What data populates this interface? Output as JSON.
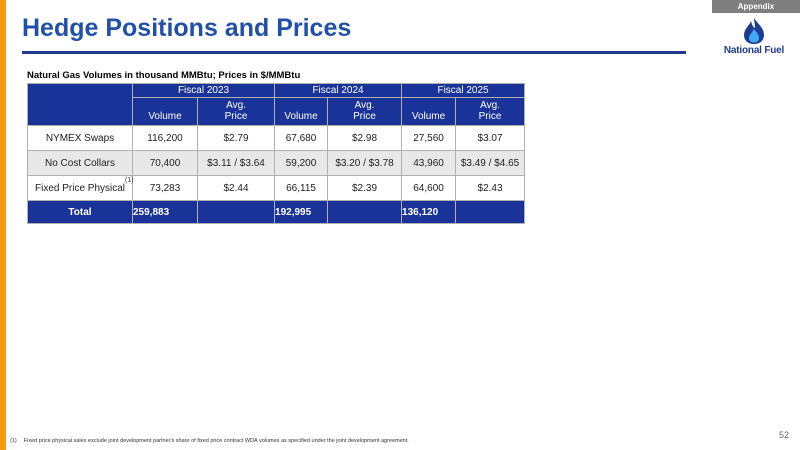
{
  "header": {
    "appendix_label": "Appendix",
    "title": "Hedge Positions and Prices",
    "logo_text": "National Fuel",
    "logo_icon": "flame-icon",
    "accent_color": "#f39c12",
    "primary_color": "#1a3399"
  },
  "table": {
    "caption": "Natural Gas Volumes in thousand MMBtu; Prices in $/MMBtu",
    "fiscal_years": [
      "Fiscal 2023",
      "Fiscal 2024",
      "Fiscal 2025"
    ],
    "sub_headers": {
      "volume": "Volume",
      "avg_price_line1": "Avg.",
      "avg_price_line2": "Price"
    },
    "rows": [
      {
        "label": "NYMEX Swaps",
        "ref": "",
        "values": [
          "116,200",
          "$2.79",
          "67,680",
          "$2.98",
          "27,560",
          "$3.07"
        ]
      },
      {
        "label": "No Cost Collars",
        "ref": "",
        "values": [
          "70,400",
          "$3.11 / $3.64",
          "59,200",
          "$3.20 / $3.78",
          "43,960",
          "$3.49 / $4.65"
        ]
      },
      {
        "label": "Fixed Price Physical",
        "ref": "(1)",
        "values": [
          "73,283",
          "$2.44",
          "66,115",
          "$2.39",
          "64,600",
          "$2.43"
        ]
      }
    ],
    "total": {
      "label": "Total",
      "values": [
        "259,883",
        "",
        "192,995",
        "",
        "136,120",
        ""
      ]
    }
  },
  "footnote": {
    "number": "(1)",
    "text": "Fixed price physical sales exclude joint development partner's share of fixed price contract WDA volumes as specified under the joint development agreement."
  },
  "page_number": "52"
}
